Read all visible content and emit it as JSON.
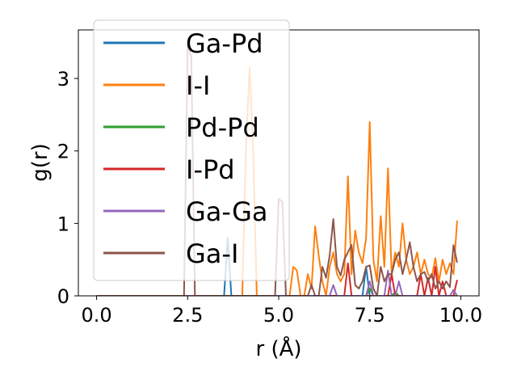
{
  "chart_data": {
    "type": "line",
    "title": "",
    "xlabel": "r (Å)",
    "ylabel": "g(r)",
    "xlim": [
      -0.5,
      10.5
    ],
    "ylim": [
      0,
      3.67
    ],
    "xticks": [
      "0.0",
      "2.5",
      "5.0",
      "7.5",
      "10.0"
    ],
    "xtick_values": [
      0,
      2.5,
      5.0,
      7.5,
      10.0
    ],
    "yticks": [
      "0",
      "1",
      "2",
      "3"
    ],
    "ytick_values": [
      0,
      1,
      2,
      3
    ],
    "grid": false,
    "legend_position": "upper-left",
    "x": [
      0.0,
      0.1,
      0.2,
      0.3,
      0.4,
      0.5,
      0.6,
      0.7,
      0.8,
      0.9,
      1.0,
      1.1,
      1.2,
      1.3,
      1.4,
      1.5,
      1.6,
      1.7,
      1.8,
      1.9,
      2.0,
      2.1,
      2.2,
      2.3,
      2.4,
      2.5,
      2.6,
      2.7,
      2.8,
      2.9,
      3.0,
      3.1,
      3.2,
      3.3,
      3.4,
      3.5,
      3.6,
      3.7,
      3.8,
      3.9,
      4.0,
      4.1,
      4.2,
      4.3,
      4.4,
      4.5,
      4.6,
      4.7,
      4.8,
      4.9,
      5.0,
      5.1,
      5.2,
      5.3,
      5.4,
      5.5,
      5.6,
      5.7,
      5.8,
      5.9,
      6.0,
      6.1,
      6.2,
      6.3,
      6.4,
      6.5,
      6.6,
      6.7,
      6.8,
      6.9,
      7.0,
      7.1,
      7.2,
      7.3,
      7.4,
      7.5,
      7.6,
      7.7,
      7.8,
      7.9,
      8.0,
      8.1,
      8.2,
      8.3,
      8.4,
      8.5,
      8.6,
      8.7,
      8.8,
      8.9,
      9.0,
      9.1,
      9.2,
      9.3,
      9.4,
      9.5,
      9.6,
      9.7,
      9.8,
      9.9
    ],
    "series": [
      {
        "name": "Ga-Pd",
        "color": "#1f77b4",
        "values": [
          0,
          0,
          0,
          0,
          0,
          0,
          0,
          0,
          0,
          0,
          0,
          0,
          0,
          0,
          0,
          0,
          0,
          0,
          0,
          0,
          0,
          0,
          0,
          0,
          0,
          0,
          0,
          0,
          0,
          0,
          0,
          0,
          0,
          0,
          0,
          0,
          0.8,
          0,
          0,
          0,
          0,
          0,
          0,
          0,
          0,
          0,
          0,
          0,
          0,
          0,
          0,
          0,
          0,
          0,
          0,
          0,
          0,
          0,
          0,
          0,
          0,
          0,
          0,
          0,
          0,
          0,
          0,
          0,
          0,
          0,
          0,
          0,
          0,
          0,
          0.4,
          0,
          0,
          0,
          0,
          0,
          0,
          0,
          0,
          0,
          0,
          0,
          0,
          0,
          0,
          0,
          0,
          0,
          0,
          0,
          0,
          0,
          0,
          0,
          0,
          0
        ]
      },
      {
        "name": "I-I",
        "color": "#ff7f0e",
        "values": [
          0,
          0,
          0,
          0,
          0,
          0,
          0,
          0,
          0,
          0,
          0,
          0,
          0,
          0,
          0,
          0,
          0,
          0,
          0,
          0,
          0,
          0,
          0,
          0,
          0,
          0,
          0,
          0,
          0,
          0,
          0,
          0,
          0,
          0,
          0,
          0,
          0,
          0,
          0,
          0,
          0,
          2.0,
          3.15,
          2.0,
          0,
          0,
          0,
          0,
          0,
          0,
          0,
          0,
          0,
          0,
          0.4,
          0.35,
          0,
          0,
          0.3,
          0.1,
          0.96,
          0.55,
          0.2,
          0,
          0.4,
          0.6,
          0.3,
          0.2,
          0.3,
          1.65,
          0.3,
          0.9,
          0.6,
          0.45,
          0.8,
          2.4,
          0.5,
          0.2,
          1.1,
          0.4,
          1.76,
          0.3,
          0.6,
          0.4,
          1.0,
          0.5,
          0.3,
          0.4,
          0.6,
          0.3,
          0.5,
          0.3,
          0.25,
          0.52,
          0.2,
          0.5,
          0.3,
          0.45,
          0.3,
          1.04
        ]
      },
      {
        "name": "Pd-Pd",
        "color": "#2ca02c",
        "values": [
          0,
          0,
          0,
          0,
          0,
          0,
          0,
          0,
          0,
          0,
          0,
          0,
          0,
          0,
          0,
          0,
          0,
          0,
          0,
          0,
          0,
          0,
          0,
          0,
          0,
          0,
          0,
          0,
          0,
          0,
          0,
          0,
          0,
          0,
          0,
          0,
          0,
          0,
          0,
          0,
          0,
          0,
          0,
          0,
          0,
          0,
          0,
          0,
          0,
          0,
          0,
          0,
          0,
          0,
          0,
          0,
          0,
          0,
          0,
          0,
          0,
          0,
          0,
          0,
          0,
          0,
          0,
          0,
          0,
          0,
          0,
          0,
          0,
          0,
          0,
          0.1,
          0,
          0,
          0,
          0,
          0,
          0,
          0.05,
          0,
          0,
          0,
          0,
          0,
          0,
          0,
          0,
          0,
          0,
          0,
          0,
          0,
          0,
          0,
          0,
          0
        ]
      },
      {
        "name": "I-Pd",
        "color": "#d62728",
        "values": [
          0,
          0,
          0,
          0,
          0,
          0,
          0,
          0,
          0,
          0,
          0,
          0,
          0,
          0,
          0,
          0,
          0,
          0,
          0,
          0,
          0,
          0,
          0,
          0,
          0,
          0,
          0,
          0,
          0,
          0,
          0,
          0,
          0,
          0,
          0,
          0,
          0,
          0,
          0,
          0,
          0,
          0,
          0,
          0,
          0,
          0,
          0,
          0,
          0,
          0,
          0,
          0,
          0,
          0,
          0,
          0,
          0,
          0,
          0,
          0,
          0,
          0,
          0,
          0,
          0,
          0,
          0,
          0,
          0,
          0.45,
          0,
          0,
          0,
          0,
          0,
          0,
          0,
          0,
          0,
          0,
          0,
          0.3,
          0,
          0,
          0,
          0,
          0,
          0,
          0,
          0.3,
          0,
          0.25,
          0,
          0.4,
          0,
          0.2,
          0,
          0,
          0,
          0.22
        ]
      },
      {
        "name": "Ga-Ga",
        "color": "#9467bd",
        "values": [
          0,
          0,
          0,
          0,
          0,
          0,
          0,
          0,
          0,
          0,
          0,
          0,
          0,
          0,
          0,
          0,
          0,
          0,
          0,
          0,
          0,
          0,
          0,
          0,
          0,
          0,
          0,
          0,
          0,
          0,
          0,
          0,
          0,
          0,
          0,
          0,
          0,
          0,
          0,
          0,
          0,
          0,
          0,
          0,
          0,
          0,
          0,
          0,
          0,
          0,
          0,
          0,
          0,
          0,
          0,
          0,
          0,
          0,
          0,
          0,
          0,
          0,
          0,
          0,
          0,
          0.15,
          0,
          0,
          0,
          0,
          0,
          0,
          0,
          0,
          0,
          0.2,
          0,
          0,
          0,
          0,
          0.35,
          0,
          0,
          0.2,
          0,
          0,
          0,
          0,
          0,
          0,
          0,
          0,
          0,
          0,
          0,
          0,
          0,
          0,
          0.08,
          0
        ]
      },
      {
        "name": "Ga-I",
        "color": "#8c564b",
        "values": [
          0,
          0,
          0,
          0,
          0,
          0,
          0,
          0,
          0,
          0,
          0,
          0,
          0,
          0,
          0,
          0,
          0,
          0,
          0,
          0,
          0,
          0,
          0,
          0,
          0,
          3.45,
          3.3,
          0,
          0,
          0,
          0,
          0,
          0,
          0,
          0,
          0,
          0,
          0,
          0,
          0,
          0,
          0,
          0,
          0,
          0,
          0,
          0,
          0,
          0,
          0,
          1.34,
          1.3,
          0,
          0,
          0,
          0,
          0,
          0,
          0,
          0.15,
          0,
          0,
          0.4,
          0.25,
          0.56,
          1.06,
          0.4,
          0.28,
          0.5,
          0.6,
          0.7,
          0.15,
          0.1,
          0.2,
          0.4,
          0.42,
          0.1,
          0,
          0.4,
          0.2,
          0.3,
          0.3,
          0.5,
          0.6,
          0.3,
          0.5,
          0.74,
          0.4,
          0.2,
          0.3,
          0.33,
          0.2,
          0.3,
          0.1,
          0.2,
          0.1,
          0.2,
          0.12,
          0.7,
          0.46
        ]
      }
    ]
  }
}
